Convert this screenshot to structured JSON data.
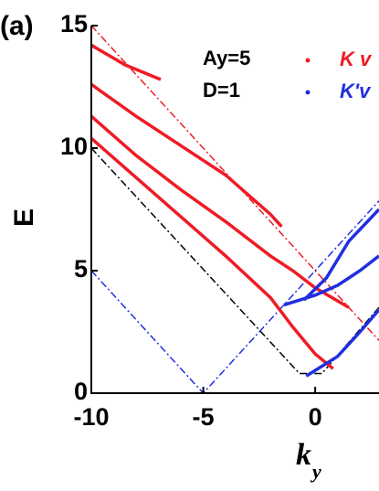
{
  "chart_data": {
    "type": "line",
    "panel_label": "(a)",
    "xlabel": "k",
    "xlabel_sub": "y",
    "ylabel": "E",
    "annotations": [
      "Ay=5",
      "D=1"
    ],
    "xlim": [
      -10,
      2.85
    ],
    "ylim": [
      0,
      15
    ],
    "xticks": [
      -10,
      -5,
      0
    ],
    "yticks": [
      0,
      5,
      10,
      15
    ],
    "series": [
      {
        "name": "K v",
        "color": "#ee1c25",
        "curves": [
          {
            "x": [
              -10,
              -8.5,
              -6.9
            ],
            "values": [
              14.2,
              13.4,
              12.8
            ]
          },
          {
            "x": [
              -10,
              -8,
              -6,
              -4,
              -2,
              -1.5
            ],
            "values": [
              12.6,
              11.3,
              10.1,
              8.9,
              7.3,
              6.8
            ]
          },
          {
            "x": [
              -10,
              -8,
              -6,
              -4,
              -2,
              -1,
              0,
              1.5
            ],
            "values": [
              11.3,
              9.7,
              8.3,
              7.0,
              5.6,
              5.0,
              4.3,
              3.5
            ]
          },
          {
            "x": [
              -10,
              -8,
              -6,
              -4,
              -2,
              -1,
              0,
              0.8
            ],
            "values": [
              10.4,
              8.8,
              7.2,
              5.6,
              3.9,
              2.7,
              1.6,
              1.0
            ]
          }
        ]
      },
      {
        "name": "K'v",
        "color": "#1f2fe0",
        "curves": [
          {
            "x": [
              -1.4,
              0,
              1,
              2,
              2.85
            ],
            "values": [
              3.6,
              4.0,
              4.4,
              5.0,
              5.6
            ]
          },
          {
            "x": [
              -0.5,
              0.5,
              1.5,
              2.85
            ],
            "values": [
              3.8,
              4.7,
              6.2,
              7.5
            ]
          },
          {
            "x": [
              -0.4,
              1,
              2,
              2.85
            ],
            "values": [
              0.7,
              1.5,
              2.5,
              3.4
            ]
          }
        ]
      }
    ],
    "lines": [
      {
        "color": "#ee1c25",
        "x": [
          -10,
          2.85
        ],
        "values": [
          15,
          2.15
        ]
      },
      {
        "color": "#000000",
        "x": [
          -10,
          -0.7,
          0.3,
          2.85
        ],
        "values": [
          10,
          0.8,
          0.8,
          3.5
        ]
      },
      {
        "color": "#1f2fe0",
        "x": [
          -10,
          -5,
          2.85
        ],
        "values": [
          5,
          0,
          7.85
        ]
      }
    ]
  }
}
